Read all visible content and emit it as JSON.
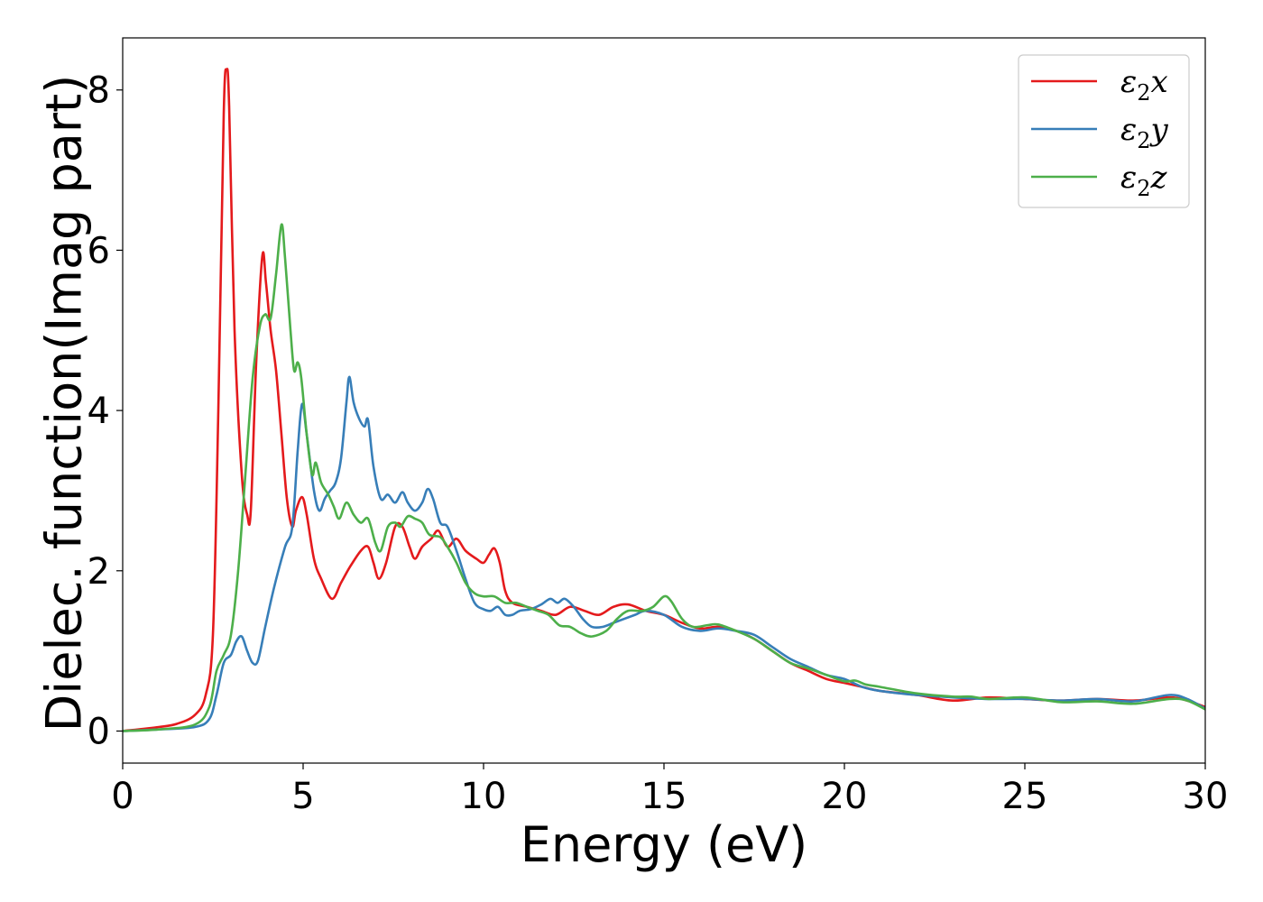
{
  "chart_data": {
    "type": "line",
    "xlabel": "Energy (eV)",
    "ylabel": "Dielec. function(Imag part)",
    "xlim": [
      0,
      30
    ],
    "ylim": [
      -0.4,
      8.65
    ],
    "xticks": [
      0,
      5,
      10,
      15,
      20,
      25,
      30
    ],
    "yticks": [
      0,
      2,
      4,
      6,
      8
    ],
    "grid": false,
    "legend_position": "top-right",
    "series": [
      {
        "name": "ε₂x",
        "legend_base": "ε",
        "legend_sub": "2",
        "legend_axis": "x",
        "color": "#e41a1c",
        "points": [
          [
            0,
            0
          ],
          [
            1,
            0.05
          ],
          [
            1.5,
            0.09
          ],
          [
            2,
            0.2
          ],
          [
            2.3,
            0.45
          ],
          [
            2.5,
            1.2
          ],
          [
            2.65,
            4.0
          ],
          [
            2.8,
            7.7
          ],
          [
            2.88,
            8.25
          ],
          [
            2.95,
            7.8
          ],
          [
            3.1,
            5.0
          ],
          [
            3.3,
            3.2
          ],
          [
            3.45,
            2.7
          ],
          [
            3.55,
            2.75
          ],
          [
            3.7,
            4.6
          ],
          [
            3.87,
            5.93
          ],
          [
            3.97,
            5.6
          ],
          [
            4.1,
            5.0
          ],
          [
            4.25,
            4.5
          ],
          [
            4.4,
            3.7
          ],
          [
            4.55,
            2.9
          ],
          [
            4.7,
            2.55
          ],
          [
            4.8,
            2.75
          ],
          [
            4.97,
            2.92
          ],
          [
            5.1,
            2.7
          ],
          [
            5.3,
            2.15
          ],
          [
            5.5,
            1.9
          ],
          [
            5.8,
            1.65
          ],
          [
            6.05,
            1.85
          ],
          [
            6.3,
            2.05
          ],
          [
            6.6,
            2.25
          ],
          [
            6.8,
            2.3
          ],
          [
            6.95,
            2.1
          ],
          [
            7.1,
            1.9
          ],
          [
            7.3,
            2.1
          ],
          [
            7.55,
            2.55
          ],
          [
            7.75,
            2.55
          ],
          [
            7.95,
            2.3
          ],
          [
            8.1,
            2.15
          ],
          [
            8.3,
            2.3
          ],
          [
            8.55,
            2.4
          ],
          [
            8.75,
            2.5
          ],
          [
            9.0,
            2.3
          ],
          [
            9.25,
            2.4
          ],
          [
            9.5,
            2.25
          ],
          [
            9.8,
            2.15
          ],
          [
            10.0,
            2.1
          ],
          [
            10.15,
            2.2
          ],
          [
            10.3,
            2.28
          ],
          [
            10.45,
            2.1
          ],
          [
            10.6,
            1.75
          ],
          [
            10.8,
            1.6
          ],
          [
            11.2,
            1.55
          ],
          [
            11.6,
            1.5
          ],
          [
            12.0,
            1.45
          ],
          [
            12.4,
            1.55
          ],
          [
            12.8,
            1.5
          ],
          [
            13.2,
            1.45
          ],
          [
            13.6,
            1.55
          ],
          [
            14.0,
            1.58
          ],
          [
            14.5,
            1.5
          ],
          [
            15.0,
            1.45
          ],
          [
            15.5,
            1.35
          ],
          [
            16.0,
            1.28
          ],
          [
            16.5,
            1.3
          ],
          [
            17.0,
            1.25
          ],
          [
            17.5,
            1.15
          ],
          [
            18.0,
            1.0
          ],
          [
            18.5,
            0.85
          ],
          [
            19.0,
            0.75
          ],
          [
            19.5,
            0.65
          ],
          [
            20.0,
            0.6
          ],
          [
            20.5,
            0.55
          ],
          [
            21.0,
            0.5
          ],
          [
            22.0,
            0.45
          ],
          [
            23.0,
            0.38
          ],
          [
            24.0,
            0.42
          ],
          [
            25.0,
            0.4
          ],
          [
            26.0,
            0.38
          ],
          [
            27.0,
            0.4
          ],
          [
            28.0,
            0.38
          ],
          [
            29.0,
            0.42
          ],
          [
            29.5,
            0.38
          ],
          [
            30,
            0.3
          ]
        ]
      },
      {
        "name": "ε₂y",
        "legend_base": "ε",
        "legend_sub": "2",
        "legend_axis": "y",
        "color": "#377eb8",
        "points": [
          [
            0,
            0
          ],
          [
            1,
            0.02
          ],
          [
            2,
            0.05
          ],
          [
            2.4,
            0.15
          ],
          [
            2.6,
            0.45
          ],
          [
            2.8,
            0.85
          ],
          [
            3.0,
            0.95
          ],
          [
            3.15,
            1.12
          ],
          [
            3.3,
            1.18
          ],
          [
            3.45,
            1.0
          ],
          [
            3.6,
            0.85
          ],
          [
            3.75,
            0.88
          ],
          [
            3.95,
            1.3
          ],
          [
            4.2,
            1.8
          ],
          [
            4.5,
            2.3
          ],
          [
            4.7,
            2.55
          ],
          [
            4.85,
            3.5
          ],
          [
            4.97,
            4.08
          ],
          [
            5.1,
            3.7
          ],
          [
            5.3,
            3.0
          ],
          [
            5.45,
            2.75
          ],
          [
            5.6,
            2.9
          ],
          [
            5.75,
            3.0
          ],
          [
            5.9,
            3.1
          ],
          [
            6.05,
            3.4
          ],
          [
            6.2,
            4.1
          ],
          [
            6.28,
            4.42
          ],
          [
            6.4,
            4.1
          ],
          [
            6.55,
            3.9
          ],
          [
            6.7,
            3.8
          ],
          [
            6.8,
            3.88
          ],
          [
            6.95,
            3.3
          ],
          [
            7.15,
            2.9
          ],
          [
            7.35,
            2.95
          ],
          [
            7.55,
            2.85
          ],
          [
            7.75,
            2.98
          ],
          [
            7.9,
            2.85
          ],
          [
            8.1,
            2.75
          ],
          [
            8.3,
            2.85
          ],
          [
            8.45,
            3.02
          ],
          [
            8.6,
            2.9
          ],
          [
            8.8,
            2.6
          ],
          [
            9.0,
            2.55
          ],
          [
            9.25,
            2.25
          ],
          [
            9.5,
            1.9
          ],
          [
            9.75,
            1.6
          ],
          [
            10.0,
            1.52
          ],
          [
            10.2,
            1.5
          ],
          [
            10.4,
            1.55
          ],
          [
            10.6,
            1.45
          ],
          [
            10.8,
            1.45
          ],
          [
            11.0,
            1.5
          ],
          [
            11.3,
            1.52
          ],
          [
            11.6,
            1.58
          ],
          [
            11.85,
            1.65
          ],
          [
            12.05,
            1.6
          ],
          [
            12.25,
            1.65
          ],
          [
            12.5,
            1.55
          ],
          [
            12.75,
            1.4
          ],
          [
            13.0,
            1.3
          ],
          [
            13.3,
            1.3
          ],
          [
            13.6,
            1.35
          ],
          [
            13.9,
            1.4
          ],
          [
            14.2,
            1.45
          ],
          [
            14.5,
            1.5
          ],
          [
            15.0,
            1.45
          ],
          [
            15.5,
            1.3
          ],
          [
            16.0,
            1.25
          ],
          [
            16.5,
            1.28
          ],
          [
            17.0,
            1.25
          ],
          [
            17.5,
            1.2
          ],
          [
            18.0,
            1.05
          ],
          [
            18.5,
            0.9
          ],
          [
            19.0,
            0.8
          ],
          [
            19.5,
            0.7
          ],
          [
            20.0,
            0.65
          ],
          [
            20.5,
            0.55
          ],
          [
            21.0,
            0.5
          ],
          [
            22.0,
            0.45
          ],
          [
            23.0,
            0.42
          ],
          [
            24.0,
            0.4
          ],
          [
            25.0,
            0.4
          ],
          [
            26.0,
            0.38
          ],
          [
            27.0,
            0.4
          ],
          [
            28.0,
            0.37
          ],
          [
            29.0,
            0.45
          ],
          [
            29.5,
            0.4
          ],
          [
            30,
            0.28
          ]
        ]
      },
      {
        "name": "ε₂z",
        "legend_base": "ε",
        "legend_sub": "2",
        "legend_axis": "z",
        "color": "#4daf4a",
        "points": [
          [
            0,
            0
          ],
          [
            1,
            0.02
          ],
          [
            2,
            0.08
          ],
          [
            2.4,
            0.3
          ],
          [
            2.6,
            0.75
          ],
          [
            2.8,
            0.95
          ],
          [
            3.0,
            1.2
          ],
          [
            3.2,
            2.0
          ],
          [
            3.4,
            3.2
          ],
          [
            3.6,
            4.4
          ],
          [
            3.8,
            5.05
          ],
          [
            3.95,
            5.2
          ],
          [
            4.1,
            5.15
          ],
          [
            4.25,
            5.7
          ],
          [
            4.4,
            6.32
          ],
          [
            4.5,
            5.9
          ],
          [
            4.65,
            5.0
          ],
          [
            4.75,
            4.5
          ],
          [
            4.85,
            4.6
          ],
          [
            4.95,
            4.4
          ],
          [
            5.1,
            3.7
          ],
          [
            5.25,
            3.2
          ],
          [
            5.35,
            3.35
          ],
          [
            5.5,
            3.1
          ],
          [
            5.7,
            2.95
          ],
          [
            5.85,
            2.8
          ],
          [
            6.0,
            2.65
          ],
          [
            6.2,
            2.85
          ],
          [
            6.4,
            2.7
          ],
          [
            6.6,
            2.6
          ],
          [
            6.8,
            2.65
          ],
          [
            7.0,
            2.35
          ],
          [
            7.15,
            2.25
          ],
          [
            7.35,
            2.55
          ],
          [
            7.55,
            2.6
          ],
          [
            7.7,
            2.55
          ],
          [
            7.9,
            2.68
          ],
          [
            8.1,
            2.65
          ],
          [
            8.3,
            2.6
          ],
          [
            8.5,
            2.45
          ],
          [
            8.8,
            2.42
          ],
          [
            9.0,
            2.3
          ],
          [
            9.25,
            2.1
          ],
          [
            9.5,
            1.85
          ],
          [
            9.75,
            1.72
          ],
          [
            10.0,
            1.68
          ],
          [
            10.3,
            1.68
          ],
          [
            10.6,
            1.6
          ],
          [
            10.9,
            1.6
          ],
          [
            11.2,
            1.55
          ],
          [
            11.5,
            1.5
          ],
          [
            11.8,
            1.45
          ],
          [
            12.1,
            1.32
          ],
          [
            12.4,
            1.3
          ],
          [
            12.7,
            1.22
          ],
          [
            13.0,
            1.18
          ],
          [
            13.4,
            1.25
          ],
          [
            13.7,
            1.4
          ],
          [
            14.0,
            1.5
          ],
          [
            14.4,
            1.5
          ],
          [
            14.7,
            1.55
          ],
          [
            15.0,
            1.68
          ],
          [
            15.2,
            1.62
          ],
          [
            15.5,
            1.4
          ],
          [
            15.8,
            1.3
          ],
          [
            16.2,
            1.32
          ],
          [
            16.5,
            1.33
          ],
          [
            17.0,
            1.25
          ],
          [
            17.5,
            1.15
          ],
          [
            18.0,
            1.0
          ],
          [
            18.5,
            0.85
          ],
          [
            19.0,
            0.78
          ],
          [
            19.5,
            0.7
          ],
          [
            20.0,
            0.62
          ],
          [
            20.3,
            0.63
          ],
          [
            20.6,
            0.58
          ],
          [
            21.0,
            0.55
          ],
          [
            22.0,
            0.47
          ],
          [
            23.0,
            0.43
          ],
          [
            23.5,
            0.43
          ],
          [
            24.0,
            0.4
          ],
          [
            25.0,
            0.42
          ],
          [
            26.0,
            0.36
          ],
          [
            27.0,
            0.37
          ],
          [
            28.0,
            0.34
          ],
          [
            29.0,
            0.4
          ],
          [
            29.5,
            0.38
          ],
          [
            30,
            0.27
          ]
        ]
      }
    ]
  }
}
